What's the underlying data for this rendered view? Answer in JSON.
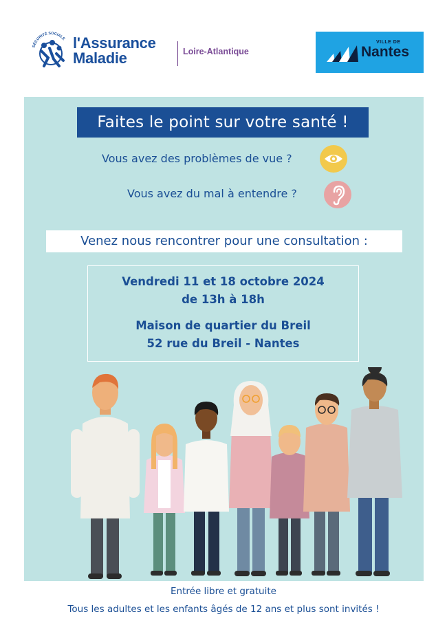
{
  "header": {
    "emblem_text": "SÉCURITÉ SOCIALE",
    "brand_line1": "l'Assurance",
    "brand_line2": "Maladie",
    "region": "Loire-Atlantique",
    "partner_prefix": "VILLE DE",
    "partner_name": "Nantes"
  },
  "panel": {
    "title": "Faites le point sur votre santé !",
    "question_vision": "Vous avez des problèmes de vue ?",
    "question_hearing": "Vous avez du mal à entendre ?",
    "invite": "Venez nous rencontrer pour une consultation :",
    "event": {
      "dates": "Vendredi 11 et 18 octobre 2024",
      "hours": "de 13h à 18h",
      "venue": "Maison de quartier du Breil",
      "address": "52 rue du Breil - Nantes"
    }
  },
  "footer": {
    "line1": "Entrée libre et gratuite",
    "line2": "Tous les adultes et les enfants âgés de 12 ans et plus sont invités !"
  },
  "colors": {
    "brand_blue": "#1b4f95",
    "panel_bg": "#bfe3e3",
    "nantes_blue": "#1fa3e3",
    "eye_icon_bg": "#f2c94c",
    "ear_icon_bg": "#e8a3a3"
  },
  "icons": [
    "eye-icon",
    "ear-icon",
    "family-illustration"
  ]
}
